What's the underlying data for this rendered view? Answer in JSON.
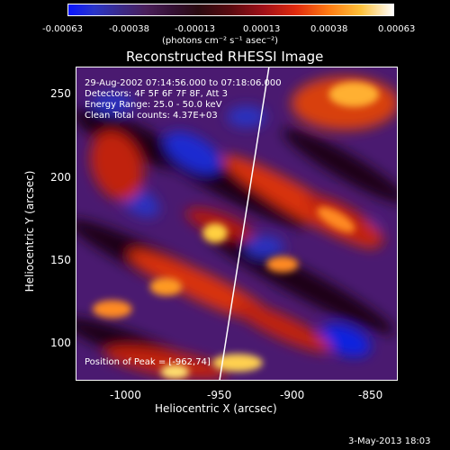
{
  "colorbar": {
    "ticks": [
      "-0.00063",
      "-0.00038",
      "-0.00013",
      "0.00013",
      "0.00038",
      "0.00063"
    ],
    "unit": "(photons cm⁻² s⁻¹ asec⁻²)"
  },
  "title": "Reconstructed RHESSI Image",
  "info": {
    "time": "29-Aug-2002 07:14:56.000 to 07:18:06.000",
    "detectors": "Detectors: 4F 5F 6F 7F 8F, Att 3",
    "energy": "Energy Range: 25.0 - 50.0 keV",
    "clean": "Clean     Total counts: 4.37E+03",
    "peak": "Position of Peak = [-962,74]"
  },
  "axes": {
    "xlabel": "Heliocentric X (arcsec)",
    "ylabel": "Heliocentric Y (arcsec)",
    "xticks": [
      "-1000",
      "-950",
      "-900",
      "-850"
    ],
    "yticks": [
      "250",
      "200",
      "150",
      "100"
    ]
  },
  "timestamp": "3-May-2013 18:03"
}
